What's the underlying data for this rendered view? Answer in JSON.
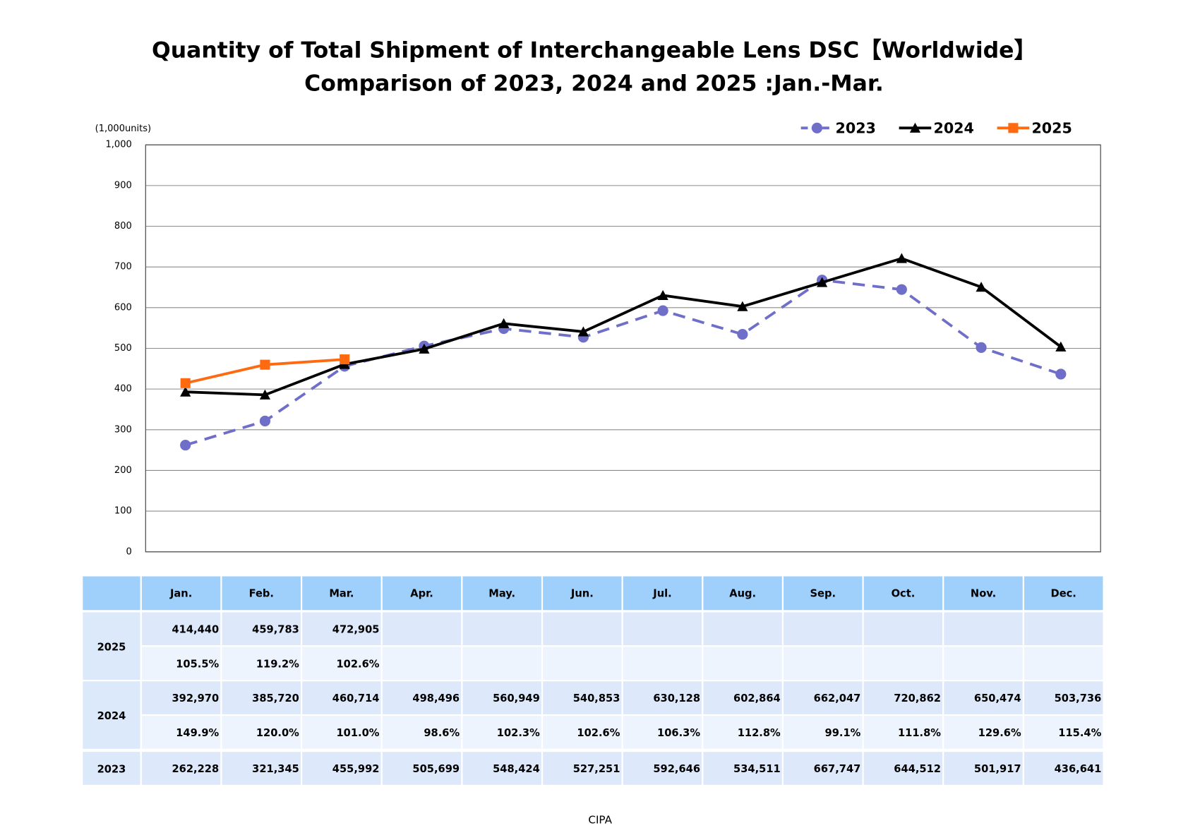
{
  "chart_data": {
    "type": "line",
    "title": "Quantity of Total Shipment of Interchangeable Lens DSC【Worldwide】",
    "subtitle": "Comparison of 2023, 2024 and 2025 :Jan.-Mar.",
    "y_label": "(1,000units)",
    "categories": [
      "Jan.",
      "Feb.",
      "Mar.",
      "Apr.",
      "May.",
      "Jun.",
      "Jul.",
      "Aug.",
      "Sep.",
      "Oct.",
      "Nov.",
      "Dec."
    ],
    "series": [
      {
        "name": "2023",
        "color": "#6f6fc9",
        "marker": "circle",
        "dash": true,
        "values": [
          262.228,
          321.345,
          455.992,
          505.699,
          548.424,
          527.251,
          592.646,
          534.511,
          667.747,
          644.512,
          501.917,
          436.641
        ]
      },
      {
        "name": "2024",
        "color": "#000000",
        "marker": "triangle",
        "dash": false,
        "values": [
          392.97,
          385.72,
          460.714,
          498.496,
          560.949,
          540.853,
          630.128,
          602.864,
          662.047,
          720.862,
          650.474,
          503.736
        ]
      },
      {
        "name": "2025",
        "color": "#ff6a10",
        "marker": "square",
        "dash": false,
        "values": [
          414.44,
          459.783,
          472.905,
          null,
          null,
          null,
          null,
          null,
          null,
          null,
          null,
          null
        ]
      }
    ],
    "ylim": [
      0,
      1000
    ],
    "yticks": [
      0,
      100,
      200,
      300,
      400,
      500,
      600,
      700,
      800,
      900,
      {
        "value": 1000,
        "label": "1,000"
      }
    ],
    "grid": true,
    "legend": "top-right"
  },
  "table": {
    "rows": [
      {
        "label": "2025",
        "values": [
          "414,440",
          "459,783",
          "472,905"
        ],
        "ratios": [
          "105.5%",
          "119.2%",
          "102.6%"
        ]
      },
      {
        "label": "2024",
        "values": [
          "392,970",
          "385,720",
          "460,714",
          "498,496",
          "560,949",
          "540,853",
          "630,128",
          "602,864",
          "662,047",
          "720,862",
          "650,474",
          "503,736"
        ],
        "ratios": [
          "149.9%",
          "120.0%",
          "101.0%",
          "98.6%",
          "102.3%",
          "102.6%",
          "106.3%",
          "112.8%",
          "99.1%",
          "111.8%",
          "129.6%",
          "115.4%"
        ]
      },
      {
        "label": "2023",
        "values": [
          "262,228",
          "321,345",
          "455,992",
          "505,699",
          "548,424",
          "527,251",
          "592,646",
          "534,511",
          "667,747",
          "644,512",
          "501,917",
          "436,641"
        ]
      }
    ]
  },
  "source": "CIPA"
}
